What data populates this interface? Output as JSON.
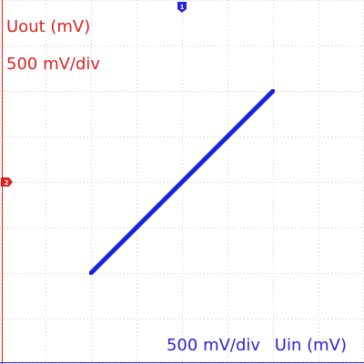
{
  "y_axis": {
    "label": "Uout (mV)",
    "scale": "500 mV/div",
    "color": "#e02020",
    "channel_marker": "2"
  },
  "x_axis": {
    "label": "Uin (mV)",
    "scale": "500 mV/div",
    "color": "#2a22d8",
    "channel_marker": "1"
  },
  "trace_color": "#1a22e0",
  "grid": {
    "on": true,
    "style": "dotted",
    "color": "#c8c8c8"
  },
  "chart_data": {
    "type": "scatter",
    "mode": "xy",
    "title": "",
    "xlabel": "Uin (mV)",
    "ylabel": "Uout (mV)",
    "x_div": 500,
    "y_div": 500,
    "xlim": [
      -2000,
      2000
    ],
    "ylim": [
      -2000,
      2000
    ],
    "series": [
      {
        "x": [
          -1000,
          -750,
          -500,
          -250,
          0,
          250,
          500,
          750,
          1000
        ],
        "y": [
          -1000,
          -750,
          -500,
          -250,
          0,
          250,
          500,
          750,
          1000
        ]
      }
    ]
  }
}
